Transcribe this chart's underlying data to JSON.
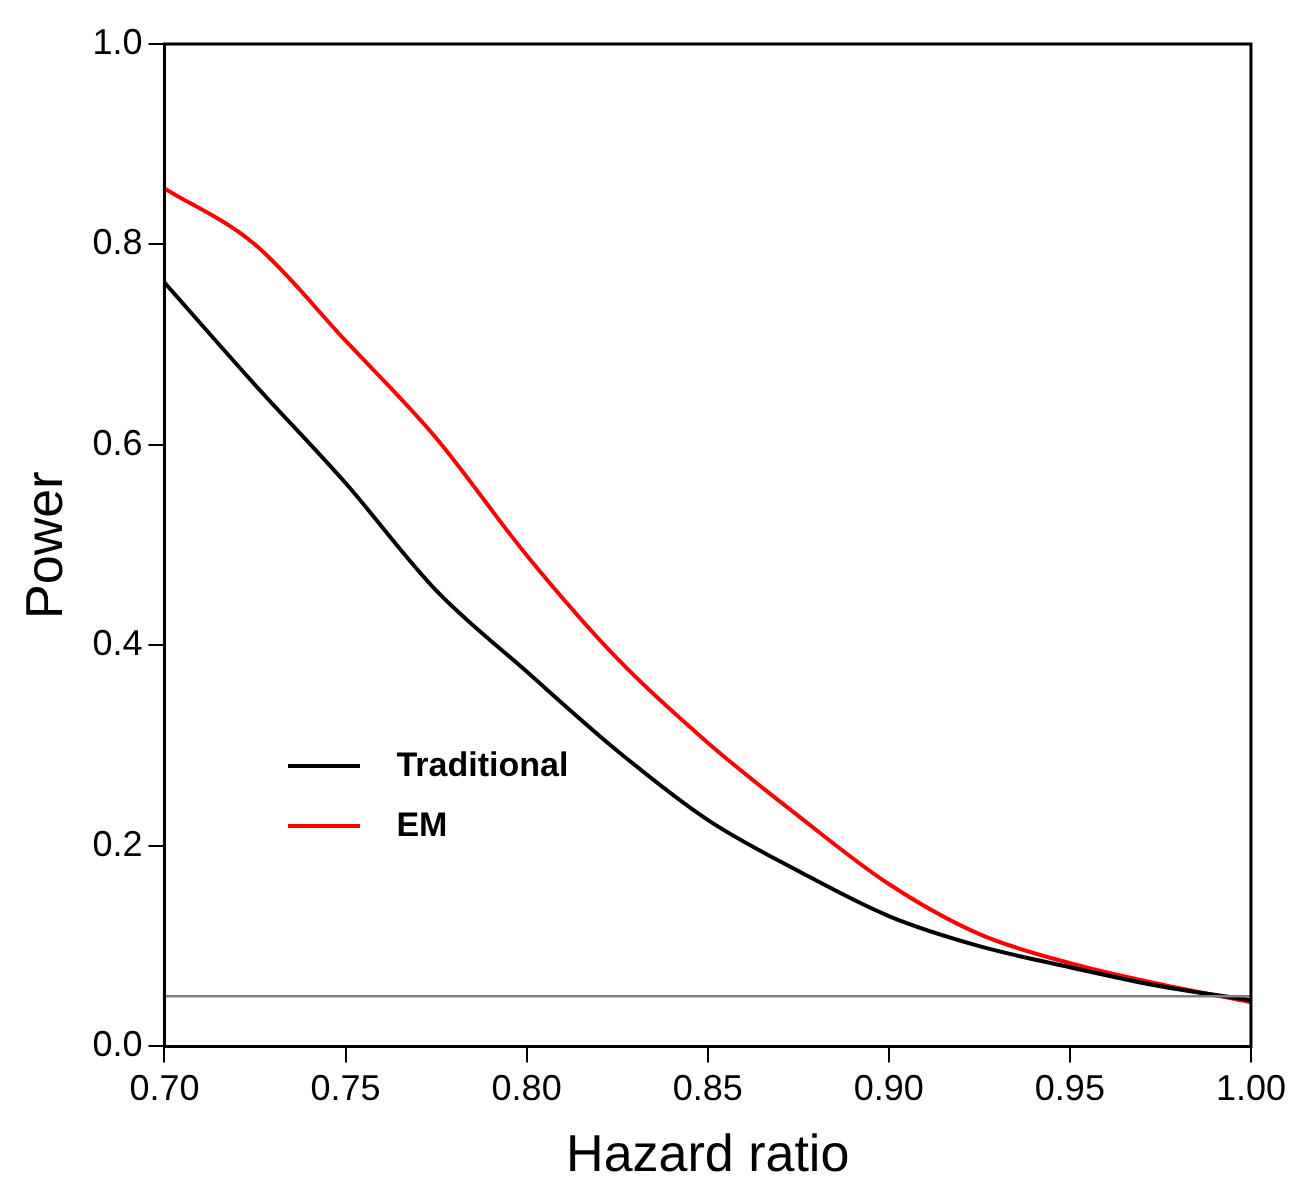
{
  "chart_data": {
    "type": "line",
    "xlabel": "Hazard ratio",
    "ylabel": "Power",
    "x": [
      0.7,
      0.725,
      0.75,
      0.775,
      0.8,
      0.825,
      0.85,
      0.875,
      0.9,
      0.925,
      0.95,
      0.975,
      1.0
    ],
    "series": [
      {
        "name": "Traditional",
        "color": "#000000",
        "values": [
          0.762,
          0.66,
          0.562,
          0.455,
          0.374,
          0.295,
          0.226,
          0.175,
          0.13,
          0.1,
          0.079,
          0.06,
          0.046
        ]
      },
      {
        "name": "EM",
        "color": "#ff0000",
        "values": [
          0.856,
          0.8,
          0.704,
          0.607,
          0.49,
          0.387,
          0.303,
          0.23,
          0.162,
          0.112,
          0.083,
          0.062,
          0.044
        ]
      }
    ],
    "xlim": [
      0.7,
      1.0
    ],
    "xticks": [
      {
        "value": 0.7,
        "label": "0.70"
      },
      {
        "value": 0.75,
        "label": "0.75"
      },
      {
        "value": 0.8,
        "label": "0.80"
      },
      {
        "value": 0.85,
        "label": "0.85"
      },
      {
        "value": 0.9,
        "label": "0.90"
      },
      {
        "value": 0.95,
        "label": "0.95"
      },
      {
        "value": 1.0,
        "label": "1.00"
      }
    ],
    "ylim": [
      0,
      1
    ],
    "yticks": [
      {
        "value": 0,
        "label": "0.0"
      },
      {
        "value": 0.2,
        "label": "0.2"
      },
      {
        "value": 0.4,
        "label": "0.4"
      },
      {
        "value": 0.6,
        "label": "0.6"
      },
      {
        "value": 0.8,
        "label": "0.8"
      },
      {
        "value": 1,
        "label": "1.0"
      }
    ],
    "ref_lines": [
      {
        "axis": "y",
        "value": 0.05,
        "color": "#808080"
      }
    ],
    "legend": "bottom left",
    "grid": false,
    "marker": "none",
    "line_style": "solid"
  }
}
